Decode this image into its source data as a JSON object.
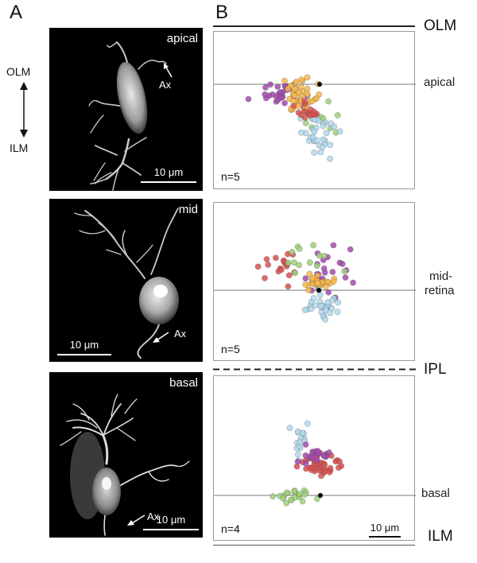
{
  "panels": {
    "a": "A",
    "b": "B"
  },
  "orientation": {
    "top": "OLM",
    "bottom": "ILM"
  },
  "micrographs": [
    {
      "label": "apical",
      "axon": "Ax",
      "scalebar": "10 μm"
    },
    {
      "label": "mid",
      "axon": "Ax",
      "scalebar": "10 μm"
    },
    {
      "label": "basal",
      "axon": "Ax",
      "scalebar": "10 μm"
    }
  ],
  "layers": {
    "olm": "OLM",
    "ipl": "IPL",
    "ilm": "ILM"
  },
  "scatter_panels": [
    {
      "n": "n=5",
      "position": "apical"
    },
    {
      "n": "n=5",
      "position_line1": "mid-",
      "position_line2": "retina"
    },
    {
      "n": "n=4",
      "position": "basal",
      "scalebar": "10 μm"
    }
  ],
  "colors": {
    "purple": "#a54aae",
    "orange": "#f8b849",
    "green": "#9fd27a",
    "blue": "#b2d9ef",
    "red": "#d9504f",
    "soma": "#000000"
  }
}
